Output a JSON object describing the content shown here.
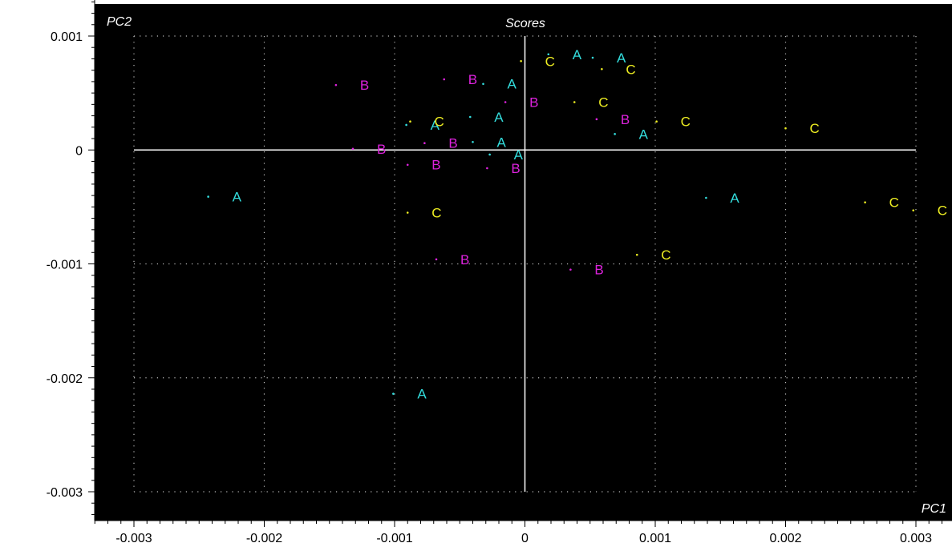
{
  "chart_data": {
    "type": "scatter",
    "title": "Scores",
    "xlabel": "PC1",
    "ylabel": "PC2",
    "xlim": [
      -0.003,
      0.003
    ],
    "ylim": [
      -0.003,
      0.001
    ],
    "x_ticks": [
      "-0.003",
      "-0.002",
      "-0.001",
      "0",
      "0.001",
      "0.002",
      "0.003"
    ],
    "y_ticks": [
      "0.001",
      "0",
      "-0.001",
      "-0.002",
      "-0.003"
    ],
    "grid": true,
    "background": "#000000",
    "series": [
      {
        "name": "A",
        "color": "#33dddd",
        "points": [
          {
            "x": -0.00243,
            "y": -0.00041
          },
          {
            "x": -0.00101,
            "y": -0.00214
          },
          {
            "x": -0.00091,
            "y": 0.00022
          },
          {
            "x": -0.00042,
            "y": 0.00029
          },
          {
            "x": -0.0004,
            "y": 7e-05
          },
          {
            "x": -0.00032,
            "y": 0.00058
          },
          {
            "x": -0.00027,
            "y": -4e-05
          },
          {
            "x": 0.00018,
            "y": 0.00084
          },
          {
            "x": 0.00052,
            "y": 0.00081
          },
          {
            "x": 0.00069,
            "y": 0.00014
          },
          {
            "x": 0.00139,
            "y": -0.00042
          }
        ]
      },
      {
        "name": "B",
        "color": "#dd22dd",
        "points": [
          {
            "x": -0.00145,
            "y": 0.00057
          },
          {
            "x": -0.00132,
            "y": 1e-05
          },
          {
            "x": -0.0009,
            "y": -0.00013
          },
          {
            "x": -0.00077,
            "y": 6e-05
          },
          {
            "x": -0.00068,
            "y": -0.00096
          },
          {
            "x": -0.00062,
            "y": 0.00062
          },
          {
            "x": -0.00029,
            "y": -0.00016
          },
          {
            "x": -0.00015,
            "y": 0.00042
          },
          {
            "x": 0.00035,
            "y": -0.00105
          },
          {
            "x": 0.00055,
            "y": 0.00027
          }
        ]
      },
      {
        "name": "C",
        "color": "#eeee22",
        "points": [
          {
            "x": -0.0009,
            "y": -0.00055
          },
          {
            "x": -0.00088,
            "y": 0.00025
          },
          {
            "x": -3e-05,
            "y": 0.00078
          },
          {
            "x": 0.00038,
            "y": 0.00042
          },
          {
            "x": 0.00059,
            "y": 0.00071
          },
          {
            "x": 0.00086,
            "y": -0.00092
          },
          {
            "x": 0.00101,
            "y": 0.00025
          },
          {
            "x": 0.002,
            "y": 0.00019
          },
          {
            "x": 0.00261,
            "y": -0.00046
          },
          {
            "x": 0.00298,
            "y": -0.00053
          }
        ]
      }
    ]
  }
}
